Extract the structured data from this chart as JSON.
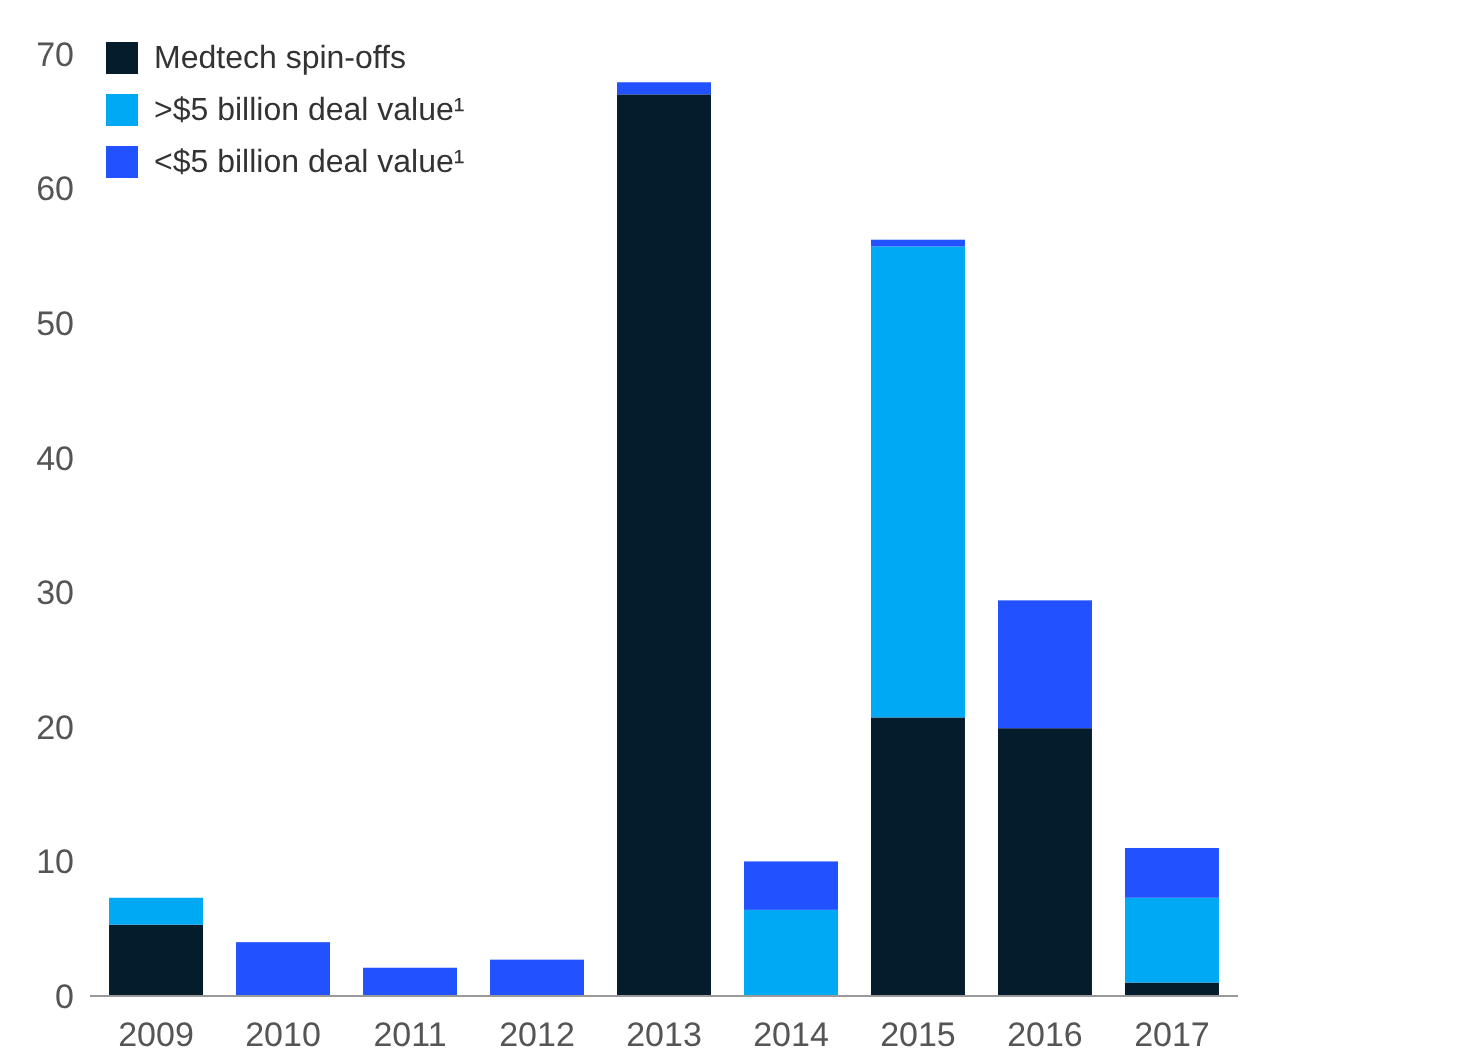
{
  "chart_data": {
    "type": "bar",
    "stacked": true,
    "categories": [
      "2009",
      "2010",
      "2011",
      "2012",
      "2013",
      "2014",
      "2015",
      "2016",
      "2017"
    ],
    "series": [
      {
        "name": "Medtech spin-offs",
        "color": "#051c2c",
        "values": [
          5.3,
          0,
          0,
          0,
          67.0,
          0,
          20.7,
          19.9,
          1.0
        ]
      },
      {
        "name": ">$5 billion deal value¹",
        "color": "#00a9f4",
        "values": [
          2.0,
          0,
          0,
          0,
          0,
          6.4,
          35.0,
          0,
          6.3
        ]
      },
      {
        "name": "<$5 billion deal value¹",
        "color": "#2251ff",
        "values": [
          0,
          4.0,
          2.1,
          2.7,
          0.9,
          3.6,
          0.5,
          9.5,
          3.7
        ]
      }
    ],
    "ylim": [
      0,
      70
    ],
    "yticks": [
      0,
      10,
      20,
      30,
      40,
      50,
      60,
      70
    ],
    "grid": false,
    "legend": "top left"
  }
}
